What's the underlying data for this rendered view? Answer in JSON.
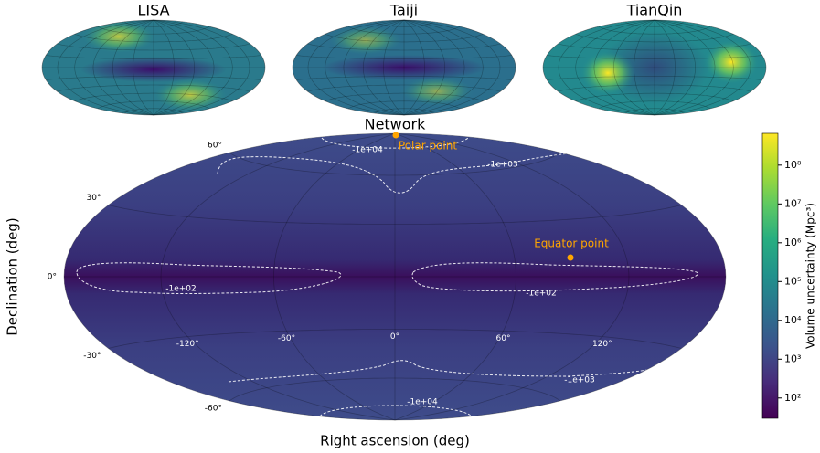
{
  "chart_data": {
    "type": "skymap",
    "title": "Network",
    "panels": [
      "LISA",
      "Taiji",
      "TianQin"
    ],
    "xlabel": "Right ascension (deg)",
    "ylabel": "Declination (deg)",
    "xticks": [
      {
        "value": -120,
        "label": "-120°"
      },
      {
        "value": -60,
        "label": "-60°"
      },
      {
        "value": 0,
        "label": "0°"
      },
      {
        "value": 60,
        "label": "60°"
      },
      {
        "value": 120,
        "label": "120°"
      }
    ],
    "yticks": [
      {
        "value": 60,
        "label": "60°"
      },
      {
        "value": 30,
        "label": "30°"
      },
      {
        "value": 0,
        "label": "0°"
      },
      {
        "value": -30,
        "label": "-30°"
      },
      {
        "value": -60,
        "label": "-60°"
      }
    ],
    "colorbar": {
      "label": "Volume uncertainty (Mpc³)",
      "log": true,
      "lim": [
        30,
        660000000
      ],
      "ticks": [
        {
          "value": 100,
          "label": "10²"
        },
        {
          "value": 1000,
          "label": "10³"
        },
        {
          "value": 10000,
          "label": "10⁴"
        },
        {
          "value": 100000,
          "label": "10⁵"
        },
        {
          "value": 1000000,
          "label": "10⁶"
        },
        {
          "value": 10000000,
          "label": "10⁷"
        },
        {
          "value": 100000000,
          "label": "10⁸"
        }
      ]
    },
    "annotations": [
      "Polar point",
      "Equator point"
    ],
    "contour_labels": [
      "-1e+04",
      "-1e+03",
      "-1e+02",
      "-1e+02",
      "-1e+03",
      "-1e+04"
    ]
  }
}
